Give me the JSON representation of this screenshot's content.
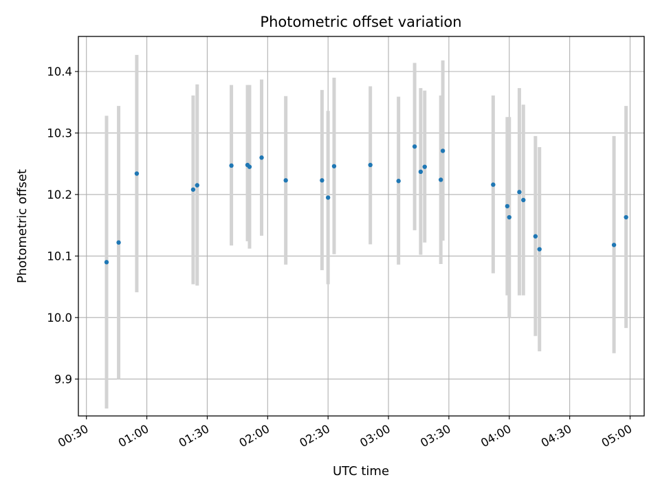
{
  "chart_data": {
    "type": "scatter",
    "title": "Photometric offset variation",
    "xlabel": "UTC time",
    "ylabel": "Photometric offset",
    "x_unit": "HH:MM",
    "xlim": [
      "00:26",
      "05:07"
    ],
    "ylim": [
      9.84,
      10.457
    ],
    "xticks": [
      "00:30",
      "01:00",
      "01:30",
      "02:00",
      "02:30",
      "03:00",
      "03:30",
      "04:00",
      "04:30",
      "05:00"
    ],
    "yticks": [
      9.9,
      10.0,
      10.1,
      10.2,
      10.3,
      10.4
    ],
    "grid": true,
    "marker_color": "#1f77b4",
    "errorbar_color": "#d3d3d3",
    "series": [
      {
        "points": [
          {
            "x": "00:40",
            "y": 10.09,
            "err_low": 9.852,
            "err_high": 10.328
          },
          {
            "x": "00:46",
            "y": 10.122,
            "err_low": 9.9,
            "err_high": 10.344
          },
          {
            "x": "00:55",
            "y": 10.234,
            "err_low": 10.041,
            "err_high": 10.427
          },
          {
            "x": "01:23",
            "y": 10.208,
            "err_low": 10.054,
            "err_high": 10.361
          },
          {
            "x": "01:25",
            "y": 10.215,
            "err_low": 10.052,
            "err_high": 10.379
          },
          {
            "x": "01:42",
            "y": 10.247,
            "err_low": 10.117,
            "err_high": 10.378
          },
          {
            "x": "01:50",
            "y": 10.248,
            "err_low": 10.124,
            "err_high": 10.378
          },
          {
            "x": "01:51",
            "y": 10.245,
            "err_low": 10.112,
            "err_high": 10.378
          },
          {
            "x": "01:57",
            "y": 10.26,
            "err_low": 10.133,
            "err_high": 10.387
          },
          {
            "x": "02:09",
            "y": 10.223,
            "err_low": 10.086,
            "err_high": 10.36
          },
          {
            "x": "02:27",
            "y": 10.223,
            "err_low": 10.077,
            "err_high": 10.37
          },
          {
            "x": "02:30",
            "y": 10.195,
            "err_low": 10.054,
            "err_high": 10.336
          },
          {
            "x": "02:33",
            "y": 10.246,
            "err_low": 10.103,
            "err_high": 10.39
          },
          {
            "x": "02:51",
            "y": 10.248,
            "err_low": 10.119,
            "err_high": 10.376
          },
          {
            "x": "03:05",
            "y": 10.222,
            "err_low": 10.086,
            "err_high": 10.359
          },
          {
            "x": "03:13",
            "y": 10.278,
            "err_low": 10.142,
            "err_high": 10.414
          },
          {
            "x": "03:16",
            "y": 10.237,
            "err_low": 10.102,
            "err_high": 10.373
          },
          {
            "x": "03:18",
            "y": 10.245,
            "err_low": 10.122,
            "err_high": 10.369
          },
          {
            "x": "03:26",
            "y": 10.224,
            "err_low": 10.087,
            "err_high": 10.361
          },
          {
            "x": "03:27",
            "y": 10.271,
            "err_low": 10.125,
            "err_high": 10.418
          },
          {
            "x": "03:52",
            "y": 10.216,
            "err_low": 10.072,
            "err_high": 10.361
          },
          {
            "x": "03:59",
            "y": 10.181,
            "err_low": 10.036,
            "err_high": 10.326
          },
          {
            "x": "04:00",
            "y": 10.163,
            "err_low": 10.0,
            "err_high": 10.326
          },
          {
            "x": "04:05",
            "y": 10.204,
            "err_low": 10.036,
            "err_high": 10.373
          },
          {
            "x": "04:07",
            "y": 10.191,
            "err_low": 10.036,
            "err_high": 10.346
          },
          {
            "x": "04:13",
            "y": 10.132,
            "err_low": 9.97,
            "err_high": 10.295
          },
          {
            "x": "04:15",
            "y": 10.111,
            "err_low": 9.945,
            "err_high": 10.277
          },
          {
            "x": "04:52",
            "y": 10.118,
            "err_low": 9.942,
            "err_high": 10.295
          },
          {
            "x": "04:58",
            "y": 10.163,
            "err_low": 9.983,
            "err_high": 10.344
          }
        ]
      }
    ]
  }
}
